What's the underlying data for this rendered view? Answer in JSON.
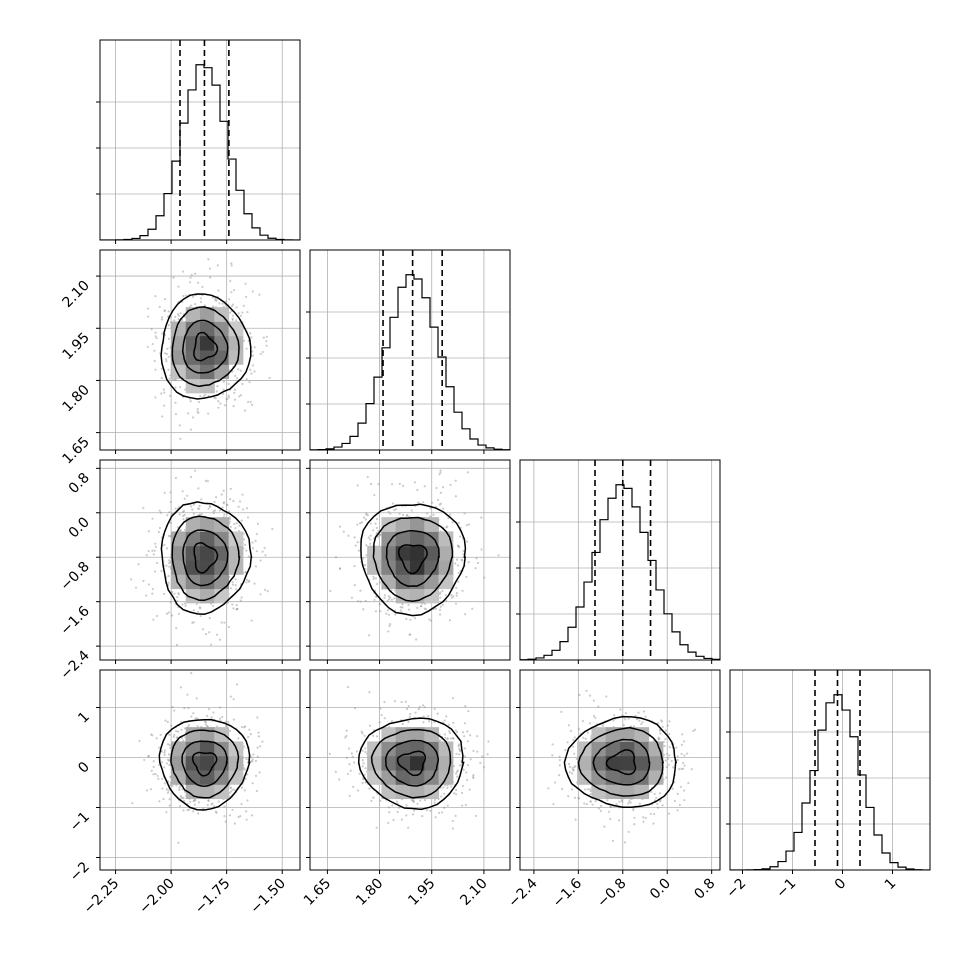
{
  "chart_data": {
    "type": "corner",
    "title": "",
    "parameters": [
      {
        "name": "",
        "ticks": [
          -2.25,
          -2.0,
          -1.75,
          -1.5
        ],
        "tick_labels": [
          "−2.25",
          "−2.00",
          "−1.75",
          "−1.50"
        ],
        "range": [
          -2.32,
          -1.42
        ],
        "mean": -1.85,
        "sigma": 0.1,
        "quantiles": [
          -1.96,
          -1.85,
          -1.74
        ]
      },
      {
        "name": "",
        "ticks": [
          1.65,
          1.8,
          1.95,
          2.1
        ],
        "tick_labels": [
          "1.65",
          "1.80",
          "1.95",
          "2.10"
        ],
        "range": [
          1.6,
          2.175
        ],
        "mean": 1.895,
        "sigma": 0.075,
        "quantiles": [
          1.81,
          1.895,
          1.98
        ]
      },
      {
        "name": "",
        "ticks": [
          -2.4,
          -1.6,
          -0.8,
          0.0,
          0.8
        ],
        "tick_labels": [
          "−2.4",
          "−1.6",
          "−0.8",
          "0.0",
          "0.8"
        ],
        "range": [
          -2.65,
          0.95
        ],
        "mean": -0.8,
        "sigma": 0.5,
        "quantiles": [
          -1.3,
          -0.8,
          -0.3
        ]
      },
      {
        "name": "",
        "ticks": [
          -2,
          -1,
          0,
          1
        ],
        "tick_labels": [
          "−2",
          "−1",
          "0",
          "1"
        ],
        "range": [
          -2.25,
          1.75
        ],
        "mean": -0.1,
        "sigma": 0.45,
        "quantiles": [
          -0.55,
          -0.1,
          0.35
        ]
      }
    ],
    "contour_levels_sigma": [
      0.5,
      1.0,
      1.5,
      2.0
    ],
    "grid": true,
    "legend": "none"
  }
}
